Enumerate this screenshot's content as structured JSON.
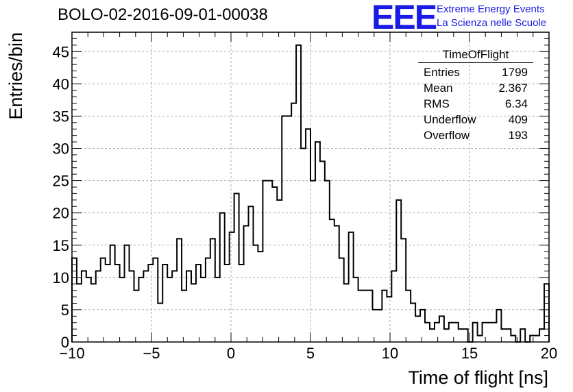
{
  "title": "BOLO-02-2016-09-01-00038",
  "brand": {
    "logo": "EEE",
    "line1": "Extreme Energy Events",
    "line2": "La Scienza nelle Scuole",
    "color": "#1a1ae6"
  },
  "stats": {
    "name": "TimeOfFlight",
    "rows": [
      {
        "label": "Entries",
        "value": "1799"
      },
      {
        "label": "Mean",
        "value": "2.367"
      },
      {
        "label": "RMS",
        "value": "6.34"
      },
      {
        "label": "Underflow",
        "value": "409"
      },
      {
        "label": "Overflow",
        "value": "193"
      }
    ]
  },
  "chart_data": {
    "type": "bar",
    "style": "step-histogram",
    "title": "BOLO-02-2016-09-01-00038",
    "xlabel": "Time of flight [ns]",
    "ylabel": "Entries/bin",
    "xlim": [
      -10,
      20
    ],
    "ylim": [
      0,
      48
    ],
    "grid": true,
    "bin_width": 0.3,
    "xticks": [
      -10,
      -5,
      0,
      5,
      10,
      15,
      20
    ],
    "xtick_labels": [
      "−10",
      "−5",
      "0",
      "5",
      "10",
      "15",
      "20"
    ],
    "yticks": [
      0,
      5,
      10,
      15,
      20,
      25,
      30,
      35,
      40,
      45
    ],
    "values": [
      13,
      9,
      11,
      10,
      9,
      11,
      13,
      12,
      15,
      12,
      10,
      15,
      11,
      8,
      10,
      11,
      12,
      13,
      6,
      12,
      10,
      11,
      16,
      8,
      11,
      9,
      12,
      10,
      13,
      16,
      10,
      20,
      12,
      17,
      23,
      12,
      18,
      21,
      15,
      14,
      25,
      25,
      24,
      22,
      35,
      35,
      37,
      46,
      30,
      33,
      25,
      31,
      28,
      25,
      19,
      18,
      13,
      9,
      17,
      10,
      8,
      8,
      8,
      5,
      5,
      8,
      7,
      11,
      22,
      16,
      8,
      6,
      4,
      5,
      3,
      2,
      3,
      4,
      2,
      3,
      3,
      2,
      2,
      0,
      3,
      1,
      3,
      3,
      3,
      5,
      2,
      2,
      1,
      0,
      2,
      0,
      1,
      1,
      2,
      9
    ]
  }
}
